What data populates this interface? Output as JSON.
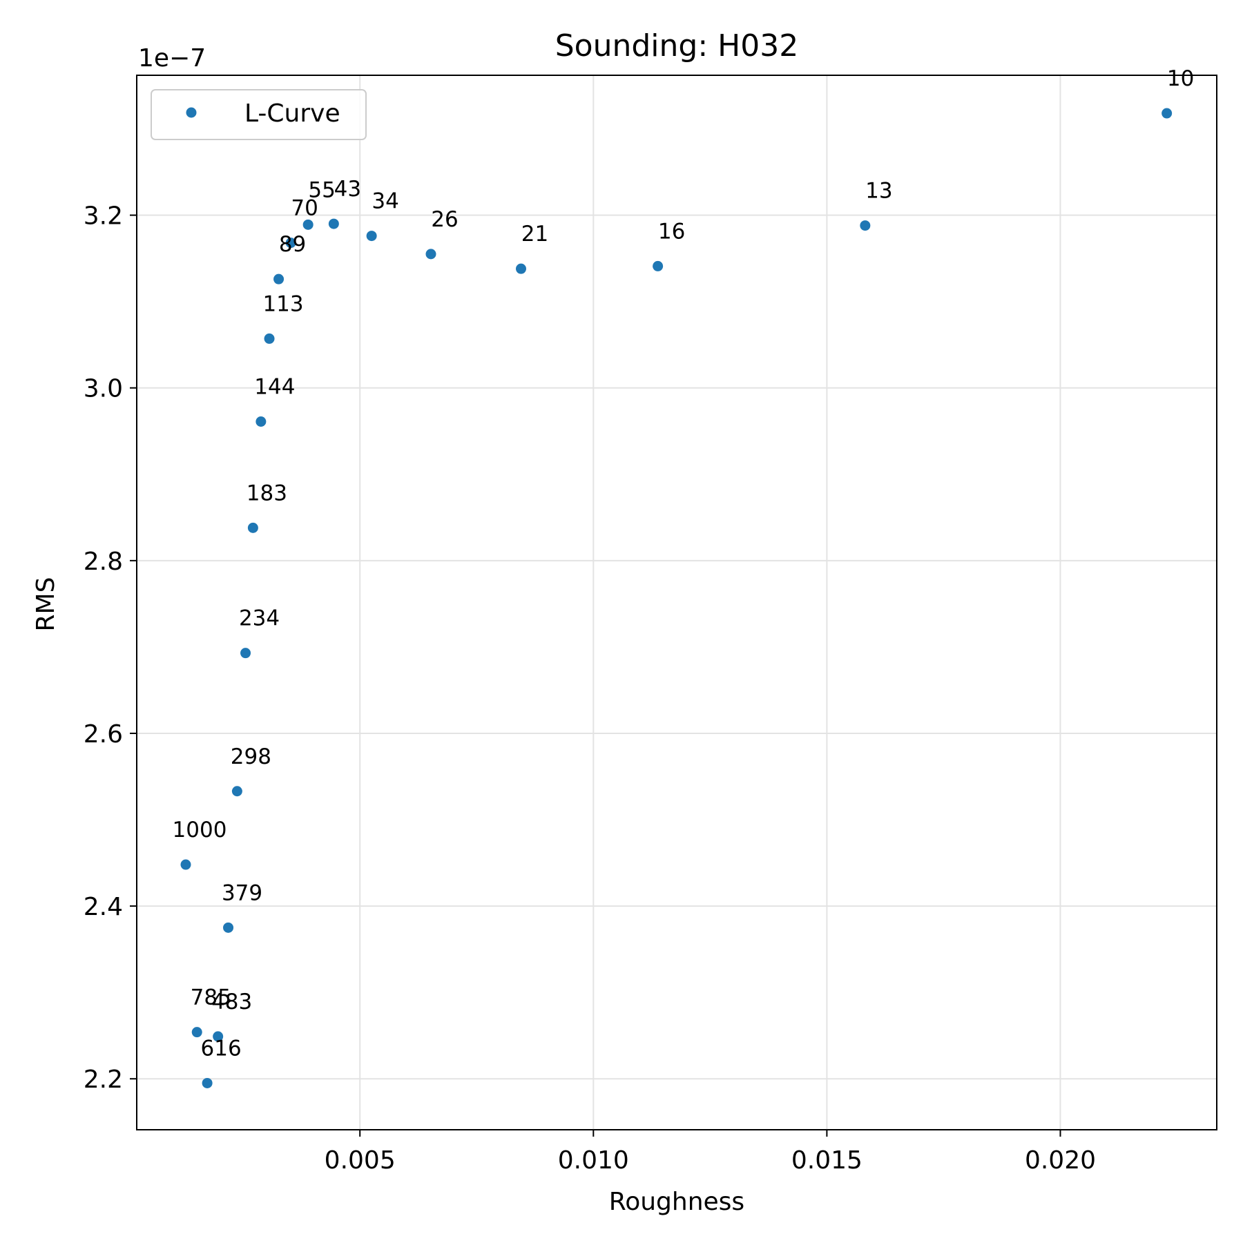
{
  "chart_data": {
    "type": "scatter",
    "title": "Sounding: H032",
    "xlabel": "Roughness",
    "ylabel": "RMS",
    "y_offset_text": "1e−7",
    "xlim": [
      0.00022,
      0.02335
    ],
    "ylim": [
      2.141,
      3.362
    ],
    "x_ticks": [
      {
        "value": 0.005,
        "label": "0.005"
      },
      {
        "value": 0.01,
        "label": "0.010"
      },
      {
        "value": 0.015,
        "label": "0.015"
      },
      {
        "value": 0.02,
        "label": "0.020"
      }
    ],
    "y_ticks": [
      {
        "value": 2.2,
        "label": "2.2"
      },
      {
        "value": 2.4,
        "label": "2.4"
      },
      {
        "value": 2.6,
        "label": "2.6"
      },
      {
        "value": 2.8,
        "label": "2.8"
      },
      {
        "value": 3.0,
        "label": "3.0"
      },
      {
        "value": 3.2,
        "label": "3.2"
      }
    ],
    "grid": true,
    "legend": {
      "position": "top-left",
      "entries": [
        "L-Curve"
      ]
    },
    "series": [
      {
        "name": "L-Curve",
        "color": "#1f77b4",
        "points": [
          {
            "x": 0.02228,
            "y": 3.318,
            "label": "10"
          },
          {
            "x": 0.01582,
            "y": 3.188,
            "label": "13"
          },
          {
            "x": 0.01138,
            "y": 3.141,
            "label": "16"
          },
          {
            "x": 0.00845,
            "y": 3.138,
            "label": "21"
          },
          {
            "x": 0.00652,
            "y": 3.155,
            "label": "26"
          },
          {
            "x": 0.00525,
            "y": 3.176,
            "label": "34"
          },
          {
            "x": 0.00444,
            "y": 3.19,
            "label": "43"
          },
          {
            "x": 0.00389,
            "y": 3.189,
            "label": "55"
          },
          {
            "x": 0.00352,
            "y": 3.168,
            "label": "70"
          },
          {
            "x": 0.00326,
            "y": 3.126,
            "label": "89"
          },
          {
            "x": 0.00306,
            "y": 3.057,
            "label": "113"
          },
          {
            "x": 0.00288,
            "y": 2.961,
            "label": "144"
          },
          {
            "x": 0.00271,
            "y": 2.838,
            "label": "183"
          },
          {
            "x": 0.00255,
            "y": 2.693,
            "label": "234"
          },
          {
            "x": 0.00237,
            "y": 2.533,
            "label": "298"
          },
          {
            "x": 0.00218,
            "y": 2.375,
            "label": "379"
          },
          {
            "x": 0.00196,
            "y": 2.249,
            "label": "483"
          },
          {
            "x": 0.00173,
            "y": 2.195,
            "label": "616"
          },
          {
            "x": 0.00151,
            "y": 2.254,
            "label": "785"
          },
          {
            "x": 0.00127,
            "y": 2.448,
            "label": "1000"
          }
        ]
      }
    ]
  }
}
